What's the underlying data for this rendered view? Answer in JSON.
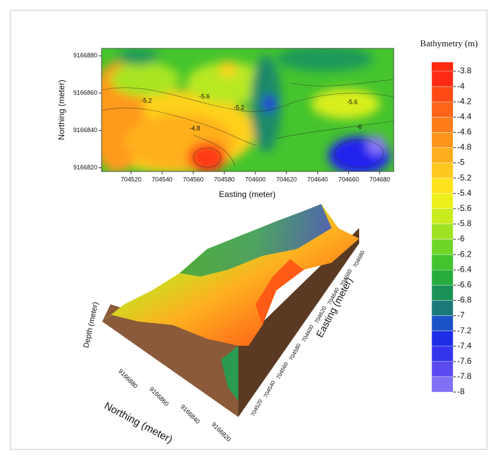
{
  "chart_data": [
    {
      "type": "contour",
      "x_label": "Easting (meter)",
      "y_label": "Northing (meter)",
      "xlim": [
        704501,
        704689
      ],
      "xticks": [
        704520,
        704540,
        704560,
        704580,
        704600,
        704620,
        704640,
        704660,
        704680
      ],
      "ylim": [
        9166818,
        9166884
      ],
      "yticks": [
        9166820,
        9166840,
        9166860,
        9166880
      ],
      "contour_labels": [
        -5.2,
        -5.6,
        -5.2,
        -4.8,
        -5.6,
        -6
      ],
      "colorbar": {
        "title": "Bathymetry  (m)",
        "levels": [
          -3.8,
          -4,
          -4.2,
          -4.4,
          -4.6,
          -4.8,
          -5,
          -5.2,
          -5.4,
          -5.6,
          -5.8,
          -6,
          -6.2,
          -6.4,
          -6.6,
          -6.8,
          -7,
          -7.2,
          -7.4,
          -7.6,
          -7.8,
          -8
        ],
        "colors": [
          "#ff2a12",
          "#ff4a14",
          "#ff6418",
          "#ff7c1a",
          "#ff951c",
          "#ffae1e",
          "#ffc81e",
          "#ffe21c",
          "#eef01c",
          "#c8ec1e",
          "#9ee223",
          "#6fd628",
          "#43c42e",
          "#26ac3c",
          "#1a9257",
          "#1a7a78",
          "#1a52c8",
          "#1e2ee6",
          "#3434ee",
          "#5a4af0",
          "#8070f4"
        ]
      }
    },
    {
      "type": "surface",
      "z_label": "Depth (meter)",
      "y_label": "Northing (meter)",
      "x_label": "Easting (meter)",
      "yticks": [
        9166880,
        9166860,
        9166840,
        9166820
      ],
      "xticks": [
        704520,
        704540,
        704560,
        704580,
        704600,
        704620,
        704640,
        704660,
        704680
      ]
    }
  ]
}
